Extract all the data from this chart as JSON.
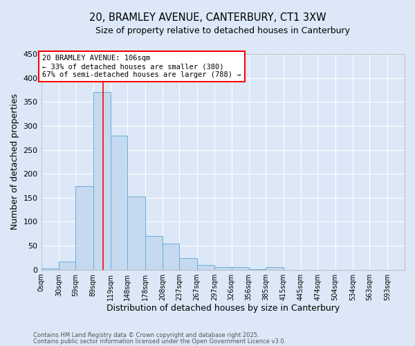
{
  "title": "20, BRAMLEY AVENUE, CANTERBURY, CT1 3XW",
  "subtitle": "Size of property relative to detached houses in Canterbury",
  "xlabel": "Distribution of detached houses by size in Canterbury",
  "ylabel": "Number of detached properties",
  "bar_values": [
    2,
    17,
    175,
    370,
    280,
    152,
    70,
    54,
    24,
    9,
    6,
    5,
    1,
    5,
    0
  ],
  "bin_edges": [
    0,
    30,
    59,
    89,
    119,
    148,
    178,
    208,
    237,
    267,
    297,
    326,
    356,
    385,
    415,
    445
  ],
  "tick_labels": [
    "0sqm",
    "30sqm",
    "59sqm",
    "89sqm",
    "119sqm",
    "148sqm",
    "178sqm",
    "208sqm",
    "237sqm",
    "267sqm",
    "297sqm",
    "326sqm",
    "356sqm",
    "385sqm",
    "415sqm",
    "445sqm",
    "474sqm",
    "504sqm",
    "534sqm",
    "563sqm",
    "593sqm"
  ],
  "all_ticks": [
    0,
    30,
    59,
    89,
    119,
    148,
    178,
    208,
    237,
    267,
    297,
    326,
    356,
    385,
    415,
    445,
    474,
    504,
    534,
    563,
    593
  ],
  "bar_color": "#c5d9f0",
  "bar_edge_color": "#6baed6",
  "background_color": "#dce8f7",
  "grid_color": "#ffffff",
  "ylim": [
    0,
    450
  ],
  "yticks": [
    0,
    50,
    100,
    150,
    200,
    250,
    300,
    350,
    400,
    450
  ],
  "red_line_x": 106,
  "annotation_title": "20 BRAMLEY AVENUE: 106sqm",
  "annotation_line1": "← 33% of detached houses are smaller (380)",
  "annotation_line2": "67% of semi-detached houses are larger (788) →",
  "footer1": "Contains HM Land Registry data © Crown copyright and database right 2025.",
  "footer2": "Contains public sector information licensed under the Open Government Licence v3.0."
}
